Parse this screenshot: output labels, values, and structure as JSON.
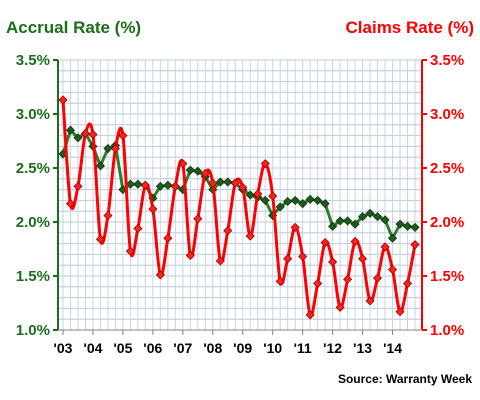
{
  "chart_data": {
    "type": "line",
    "source": "Source: Warranty Week",
    "left_axis": {
      "title": "Accrual Rate (%)",
      "color": "#1a6e1a",
      "ylim": [
        1.0,
        3.5
      ],
      "ticks": [
        "1.0%",
        "1.5%",
        "2.0%",
        "2.5%",
        "3.0%",
        "3.5%"
      ]
    },
    "right_axis": {
      "title": "Claims Rate (%)",
      "color": "#ff0000",
      "ylim": [
        1.0,
        3.5
      ],
      "ticks": [
        "1.0%",
        "1.5%",
        "2.0%",
        "2.5%",
        "3.0%",
        "3.5%"
      ]
    },
    "x_ticks": [
      "'03",
      "'04",
      "'05",
      "'06",
      "'07",
      "'08",
      "'09",
      "'10",
      "'11",
      "'12",
      "'13",
      "'14"
    ],
    "grid": true,
    "series": [
      {
        "key": "accrual",
        "axis": "left",
        "color": "#2e7d2e",
        "marker_color": "#1e5a1e",
        "quarters": [
          "2003Q1",
          "2003Q2",
          "2003Q3",
          "2003Q4",
          "2004Q1",
          "2004Q2",
          "2004Q3",
          "2004Q4",
          "2005Q1",
          "2005Q2",
          "2005Q3",
          "2005Q4",
          "2006Q1",
          "2006Q2",
          "2006Q3",
          "2006Q4",
          "2007Q1",
          "2007Q2",
          "2007Q3",
          "2007Q4",
          "2008Q1",
          "2008Q2",
          "2008Q3",
          "2008Q4",
          "2009Q1",
          "2009Q2",
          "2009Q3",
          "2009Q4",
          "2010Q1",
          "2010Q2",
          "2010Q3",
          "2010Q4",
          "2011Q1",
          "2011Q2",
          "2011Q3",
          "2011Q4",
          "2012Q1",
          "2012Q2",
          "2012Q3",
          "2012Q4",
          "2013Q1",
          "2013Q2",
          "2013Q3",
          "2013Q4",
          "2014Q1",
          "2014Q2",
          "2014Q3",
          "2014Q4"
        ],
        "values": [
          2.63,
          2.85,
          2.78,
          2.82,
          2.7,
          2.52,
          2.68,
          2.71,
          2.3,
          2.35,
          2.35,
          2.34,
          2.22,
          2.33,
          2.34,
          2.33,
          2.3,
          2.48,
          2.47,
          2.42,
          2.3,
          2.37,
          2.37,
          2.36,
          2.3,
          2.25,
          2.23,
          2.2,
          2.06,
          2.14,
          2.19,
          2.2,
          2.17,
          2.21,
          2.2,
          2.17,
          1.96,
          2.01,
          2.01,
          1.98,
          2.05,
          2.08,
          2.05,
          2.02,
          1.85,
          1.98,
          1.96,
          1.95
        ]
      },
      {
        "key": "claims",
        "axis": "right",
        "color": "#ff0000",
        "marker_color": "#ff2020",
        "quarters": [
          "2003Q1",
          "2003Q2",
          "2003Q3",
          "2003Q4",
          "2004Q1",
          "2004Q2",
          "2004Q3",
          "2004Q4",
          "2005Q1",
          "2005Q2",
          "2005Q3",
          "2005Q4",
          "2006Q1",
          "2006Q2",
          "2006Q3",
          "2006Q4",
          "2007Q1",
          "2007Q2",
          "2007Q3",
          "2007Q4",
          "2008Q1",
          "2008Q2",
          "2008Q3",
          "2008Q4",
          "2009Q1",
          "2009Q2",
          "2009Q3",
          "2009Q4",
          "2010Q1",
          "2010Q2",
          "2010Q3",
          "2010Q4",
          "2011Q1",
          "2011Q2",
          "2011Q3",
          "2011Q4",
          "2012Q1",
          "2012Q2",
          "2012Q3",
          "2012Q4",
          "2013Q1",
          "2013Q2",
          "2013Q3",
          "2013Q4",
          "2014Q1",
          "2014Q2",
          "2014Q3",
          "2014Q4"
        ],
        "values": [
          3.13,
          2.17,
          2.33,
          2.82,
          2.81,
          1.84,
          2.06,
          2.68,
          2.8,
          1.73,
          1.94,
          2.34,
          2.12,
          1.51,
          1.85,
          2.33,
          2.54,
          1.69,
          2.03,
          2.45,
          2.36,
          1.64,
          1.92,
          2.36,
          2.32,
          1.87,
          2.26,
          2.54,
          2.24,
          1.45,
          1.66,
          1.95,
          1.68,
          1.14,
          1.43,
          1.81,
          1.63,
          1.21,
          1.47,
          1.82,
          1.66,
          1.27,
          1.48,
          1.77,
          1.56,
          1.17,
          1.43,
          1.79
        ]
      }
    ]
  }
}
